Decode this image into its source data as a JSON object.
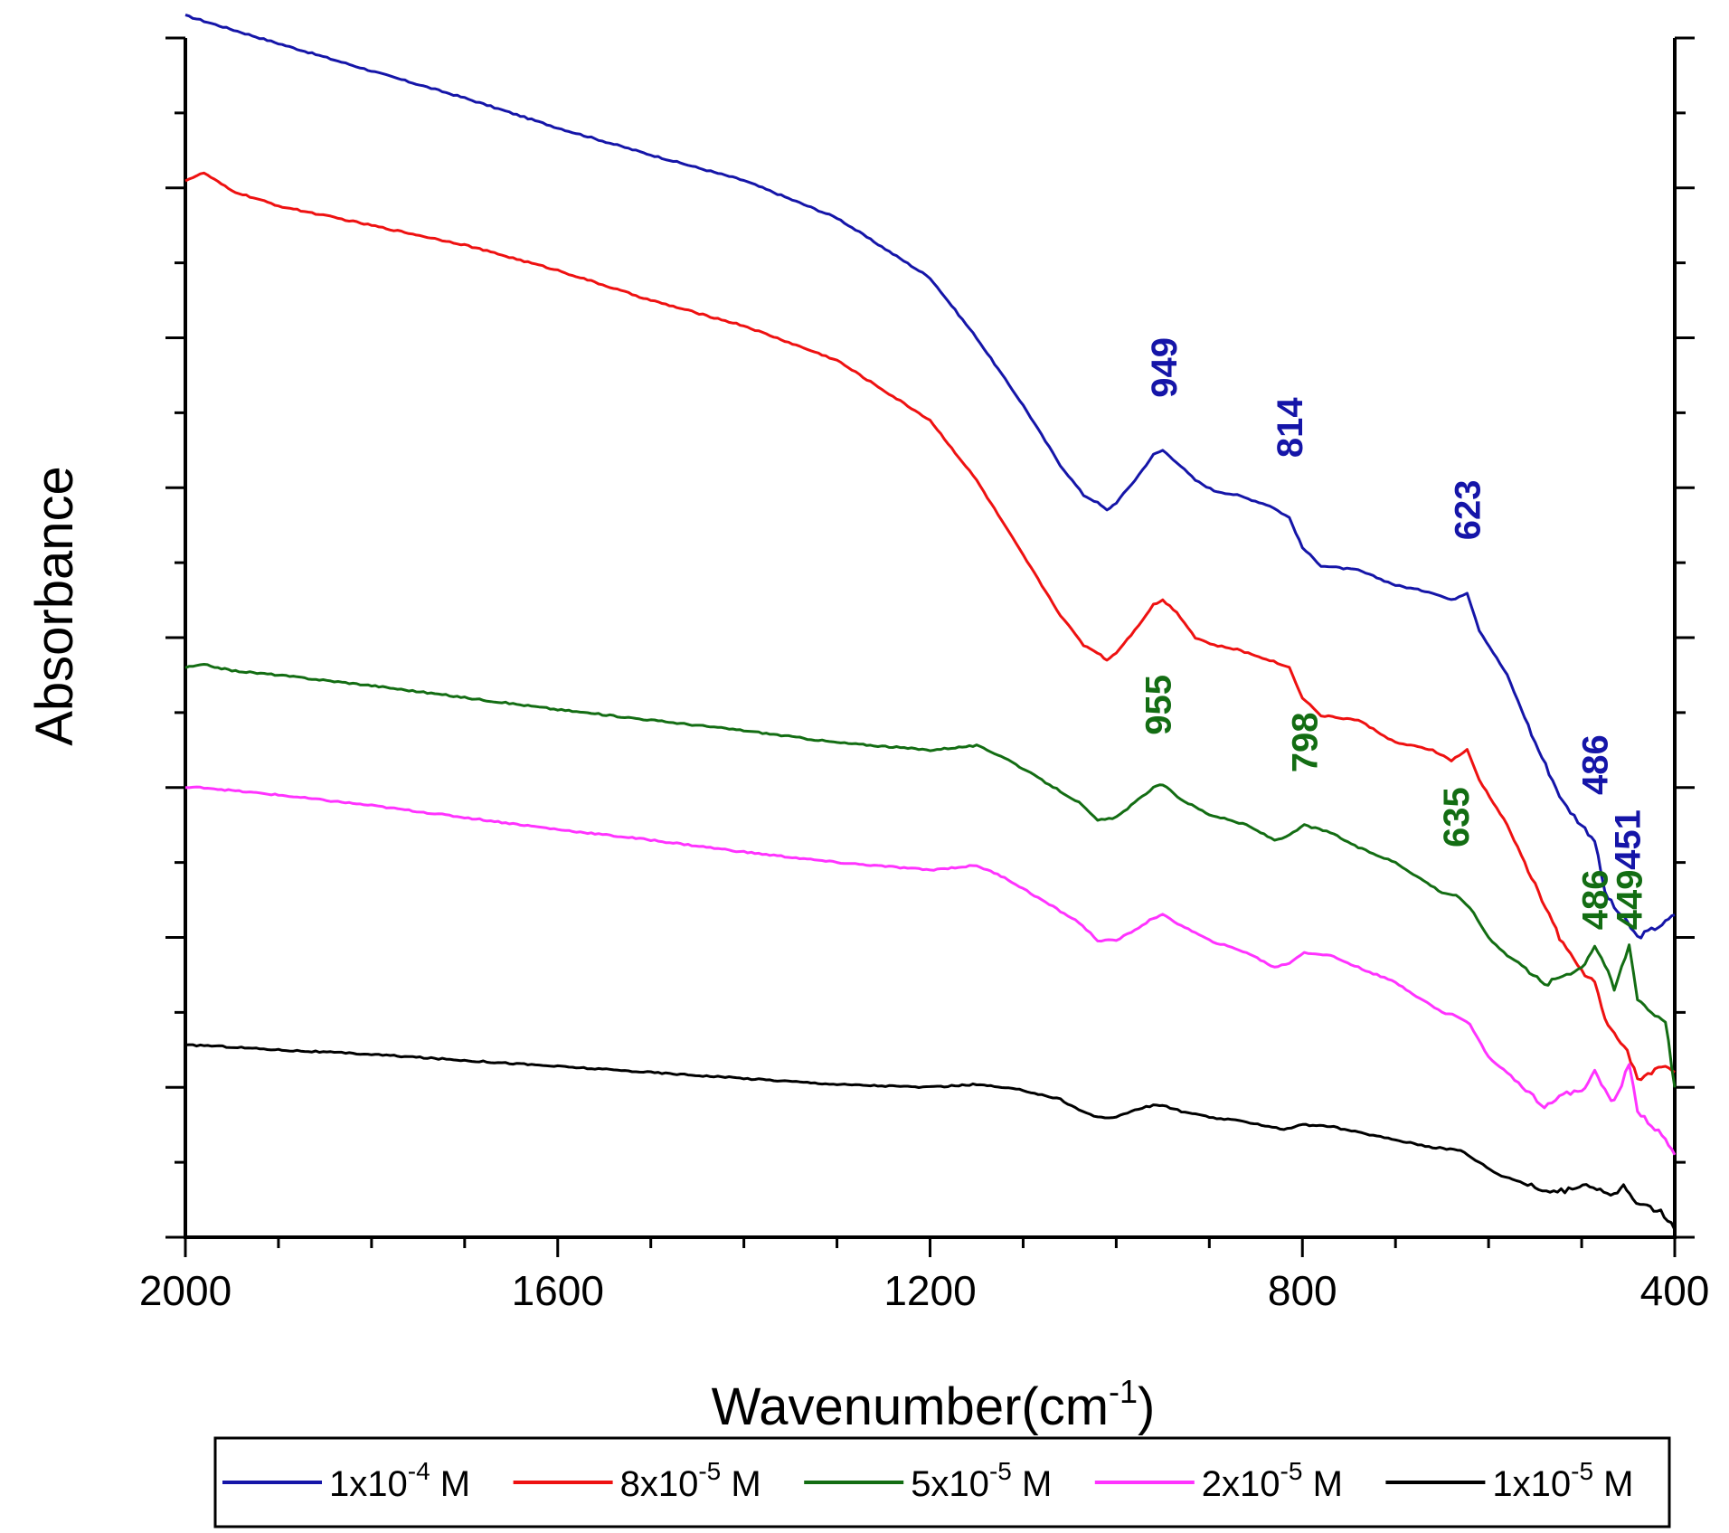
{
  "chart_data": {
    "type": "line",
    "title": "",
    "xlabel": "Wavenumber(cm",
    "xlabel_sup": "-1",
    "xlabel_end": ")",
    "ylabel": "Absorbance",
    "xlim": [
      2000,
      400
    ],
    "ylim": [
      0,
      8
    ],
    "xticks": [
      2000,
      1600,
      1200,
      800,
      400
    ],
    "grid": false,
    "legend_position": "bottom",
    "series": [
      {
        "name": "1x10-4 M",
        "label_base": "1x10",
        "label_exp": "-4",
        "label_unit": " M",
        "color": "#1515a8",
        "points": [
          [
            2000,
            8.15
          ],
          [
            1920,
            8.0
          ],
          [
            1800,
            7.78
          ],
          [
            1700,
            7.6
          ],
          [
            1600,
            7.4
          ],
          [
            1500,
            7.22
          ],
          [
            1400,
            7.05
          ],
          [
            1300,
            6.8
          ],
          [
            1200,
            6.4
          ],
          [
            1150,
            6.0
          ],
          [
            1100,
            5.55
          ],
          [
            1060,
            5.15
          ],
          [
            1035,
            4.95
          ],
          [
            1020,
            4.9
          ],
          [
            1010,
            4.85
          ],
          [
            1000,
            4.9
          ],
          [
            980,
            5.05
          ],
          [
            960,
            5.22
          ],
          [
            950,
            5.25
          ],
          [
            935,
            5.17
          ],
          [
            915,
            5.05
          ],
          [
            895,
            4.98
          ],
          [
            870,
            4.95
          ],
          [
            835,
            4.88
          ],
          [
            814,
            4.8
          ],
          [
            800,
            4.6
          ],
          [
            780,
            4.48
          ],
          [
            740,
            4.45
          ],
          [
            700,
            4.35
          ],
          [
            660,
            4.3
          ],
          [
            640,
            4.25
          ],
          [
            623,
            4.3
          ],
          [
            610,
            4.05
          ],
          [
            580,
            3.75
          ],
          [
            550,
            3.3
          ],
          [
            520,
            2.9
          ],
          [
            500,
            2.75
          ],
          [
            486,
            2.65
          ],
          [
            475,
            2.3
          ],
          [
            465,
            2.2
          ],
          [
            451,
            2.1
          ],
          [
            440,
            2.0
          ],
          [
            425,
            2.05
          ],
          [
            410,
            2.1
          ],
          [
            400,
            2.15
          ]
        ]
      },
      {
        "name": "8x10-5 M",
        "label_base": "8x10",
        "label_exp": "-5",
        "label_unit": " M",
        "color": "#ee1111",
        "points": [
          [
            2000,
            7.05
          ],
          [
            1980,
            7.1
          ],
          [
            1950,
            6.98
          ],
          [
            1900,
            6.88
          ],
          [
            1800,
            6.75
          ],
          [
            1700,
            6.62
          ],
          [
            1600,
            6.45
          ],
          [
            1500,
            6.25
          ],
          [
            1400,
            6.08
          ],
          [
            1300,
            5.85
          ],
          [
            1200,
            5.45
          ],
          [
            1150,
            5.05
          ],
          [
            1100,
            4.55
          ],
          [
            1060,
            4.15
          ],
          [
            1035,
            3.95
          ],
          [
            1020,
            3.9
          ],
          [
            1010,
            3.85
          ],
          [
            1000,
            3.9
          ],
          [
            980,
            4.05
          ],
          [
            960,
            4.22
          ],
          [
            950,
            4.25
          ],
          [
            935,
            4.17
          ],
          [
            915,
            4.0
          ],
          [
            895,
            3.95
          ],
          [
            870,
            3.92
          ],
          [
            835,
            3.85
          ],
          [
            814,
            3.8
          ],
          [
            800,
            3.6
          ],
          [
            780,
            3.48
          ],
          [
            740,
            3.45
          ],
          [
            700,
            3.3
          ],
          [
            660,
            3.25
          ],
          [
            640,
            3.18
          ],
          [
            623,
            3.25
          ],
          [
            610,
            3.05
          ],
          [
            580,
            2.75
          ],
          [
            550,
            2.35
          ],
          [
            520,
            1.95
          ],
          [
            500,
            1.78
          ],
          [
            486,
            1.7
          ],
          [
            475,
            1.45
          ],
          [
            465,
            1.35
          ],
          [
            451,
            1.25
          ],
          [
            440,
            1.05
          ],
          [
            425,
            1.1
          ],
          [
            410,
            1.15
          ],
          [
            400,
            1.1
          ]
        ]
      },
      {
        "name": "5x10-5 M",
        "label_base": "5x10",
        "label_exp": "-5",
        "label_unit": " M",
        "color": "#136d13",
        "points": [
          [
            2000,
            3.8
          ],
          [
            1980,
            3.82
          ],
          [
            1950,
            3.78
          ],
          [
            1900,
            3.75
          ],
          [
            1800,
            3.68
          ],
          [
            1700,
            3.6
          ],
          [
            1600,
            3.52
          ],
          [
            1500,
            3.45
          ],
          [
            1400,
            3.38
          ],
          [
            1300,
            3.3
          ],
          [
            1200,
            3.25
          ],
          [
            1150,
            3.28
          ],
          [
            1120,
            3.2
          ],
          [
            1080,
            3.05
          ],
          [
            1040,
            2.9
          ],
          [
            1020,
            2.78
          ],
          [
            1000,
            2.8
          ],
          [
            980,
            2.9
          ],
          [
            960,
            3.0
          ],
          [
            950,
            3.02
          ],
          [
            930,
            2.92
          ],
          [
            900,
            2.82
          ],
          [
            860,
            2.75
          ],
          [
            830,
            2.65
          ],
          [
            814,
            2.68
          ],
          [
            798,
            2.75
          ],
          [
            770,
            2.7
          ],
          [
            740,
            2.6
          ],
          [
            700,
            2.5
          ],
          [
            670,
            2.38
          ],
          [
            650,
            2.3
          ],
          [
            635,
            2.28
          ],
          [
            620,
            2.2
          ],
          [
            600,
            2.0
          ],
          [
            580,
            1.88
          ],
          [
            560,
            1.8
          ],
          [
            540,
            1.68
          ],
          [
            520,
            1.75
          ],
          [
            500,
            1.8
          ],
          [
            486,
            1.95
          ],
          [
            475,
            1.82
          ],
          [
            465,
            1.65
          ],
          [
            449,
            1.95
          ],
          [
            440,
            1.6
          ],
          [
            425,
            1.5
          ],
          [
            410,
            1.45
          ],
          [
            400,
            1.0
          ]
        ]
      },
      {
        "name": "2x10-5 M",
        "label_base": "2x10",
        "label_exp": "-5",
        "label_unit": " M",
        "color": "#ff33ff",
        "points": [
          [
            2000,
            3.0
          ],
          [
            1980,
            3.0
          ],
          [
            1950,
            2.98
          ],
          [
            1900,
            2.95
          ],
          [
            1800,
            2.88
          ],
          [
            1700,
            2.8
          ],
          [
            1600,
            2.72
          ],
          [
            1500,
            2.65
          ],
          [
            1400,
            2.57
          ],
          [
            1300,
            2.5
          ],
          [
            1200,
            2.45
          ],
          [
            1150,
            2.48
          ],
          [
            1120,
            2.4
          ],
          [
            1080,
            2.25
          ],
          [
            1040,
            2.1
          ],
          [
            1020,
            1.98
          ],
          [
            1000,
            1.98
          ],
          [
            980,
            2.05
          ],
          [
            960,
            2.13
          ],
          [
            950,
            2.15
          ],
          [
            930,
            2.08
          ],
          [
            900,
            1.98
          ],
          [
            860,
            1.9
          ],
          [
            830,
            1.8
          ],
          [
            814,
            1.83
          ],
          [
            798,
            1.9
          ],
          [
            770,
            1.88
          ],
          [
            740,
            1.8
          ],
          [
            700,
            1.7
          ],
          [
            670,
            1.58
          ],
          [
            650,
            1.5
          ],
          [
            635,
            1.48
          ],
          [
            620,
            1.42
          ],
          [
            600,
            1.2
          ],
          [
            580,
            1.1
          ],
          [
            560,
            0.98
          ],
          [
            540,
            0.88
          ],
          [
            520,
            0.95
          ],
          [
            500,
            0.98
          ],
          [
            486,
            1.1
          ],
          [
            475,
            0.98
          ],
          [
            465,
            0.9
          ],
          [
            449,
            1.15
          ],
          [
            440,
            0.85
          ],
          [
            425,
            0.75
          ],
          [
            410,
            0.65
          ],
          [
            400,
            0.55
          ]
        ]
      },
      {
        "name": "1x10-5 M",
        "label_base": "1x10",
        "label_exp": "-5",
        "label_unit": " M",
        "color": "#000000",
        "points": [
          [
            2000,
            1.28
          ],
          [
            1980,
            1.28
          ],
          [
            1900,
            1.25
          ],
          [
            1800,
            1.22
          ],
          [
            1700,
            1.18
          ],
          [
            1600,
            1.14
          ],
          [
            1500,
            1.1
          ],
          [
            1400,
            1.06
          ],
          [
            1300,
            1.02
          ],
          [
            1200,
            1.0
          ],
          [
            1150,
            1.02
          ],
          [
            1100,
            0.98
          ],
          [
            1060,
            0.92
          ],
          [
            1040,
            0.85
          ],
          [
            1020,
            0.8
          ],
          [
            1000,
            0.8
          ],
          [
            980,
            0.85
          ],
          [
            960,
            0.88
          ],
          [
            950,
            0.88
          ],
          [
            930,
            0.84
          ],
          [
            900,
            0.8
          ],
          [
            860,
            0.77
          ],
          [
            820,
            0.72
          ],
          [
            800,
            0.75
          ],
          [
            770,
            0.74
          ],
          [
            740,
            0.7
          ],
          [
            700,
            0.65
          ],
          [
            660,
            0.6
          ],
          [
            630,
            0.58
          ],
          [
            610,
            0.5
          ],
          [
            590,
            0.42
          ],
          [
            570,
            0.38
          ],
          [
            550,
            0.33
          ],
          [
            530,
            0.3
          ],
          [
            510,
            0.32
          ],
          [
            495,
            0.36
          ],
          [
            480,
            0.32
          ],
          [
            465,
            0.28
          ],
          [
            455,
            0.35
          ],
          [
            445,
            0.25
          ],
          [
            430,
            0.2
          ],
          [
            415,
            0.18
          ],
          [
            400,
            0.05
          ]
        ]
      }
    ],
    "annotations": [
      {
        "text": "949",
        "x": 949,
        "y": 5.6,
        "color": "#1515a8"
      },
      {
        "text": "814",
        "x": 814,
        "y": 5.2,
        "color": "#1515a8"
      },
      {
        "text": "623",
        "x": 623,
        "y": 4.65,
        "color": "#1515a8"
      },
      {
        "text": "486",
        "x": 486,
        "y": 2.95,
        "color": "#1515a8"
      },
      {
        "text": "451",
        "x": 451,
        "y": 2.45,
        "color": "#1515a8"
      },
      {
        "text": "955",
        "x": 955,
        "y": 3.35,
        "color": "#136d13"
      },
      {
        "text": "798",
        "x": 798,
        "y": 3.1,
        "color": "#136d13"
      },
      {
        "text": "635",
        "x": 635,
        "y": 2.6,
        "color": "#136d13"
      },
      {
        "text": "486",
        "x": 486,
        "y": 2.05,
        "color": "#136d13"
      },
      {
        "text": "449",
        "x": 449,
        "y": 2.05,
        "color": "#136d13"
      }
    ]
  }
}
